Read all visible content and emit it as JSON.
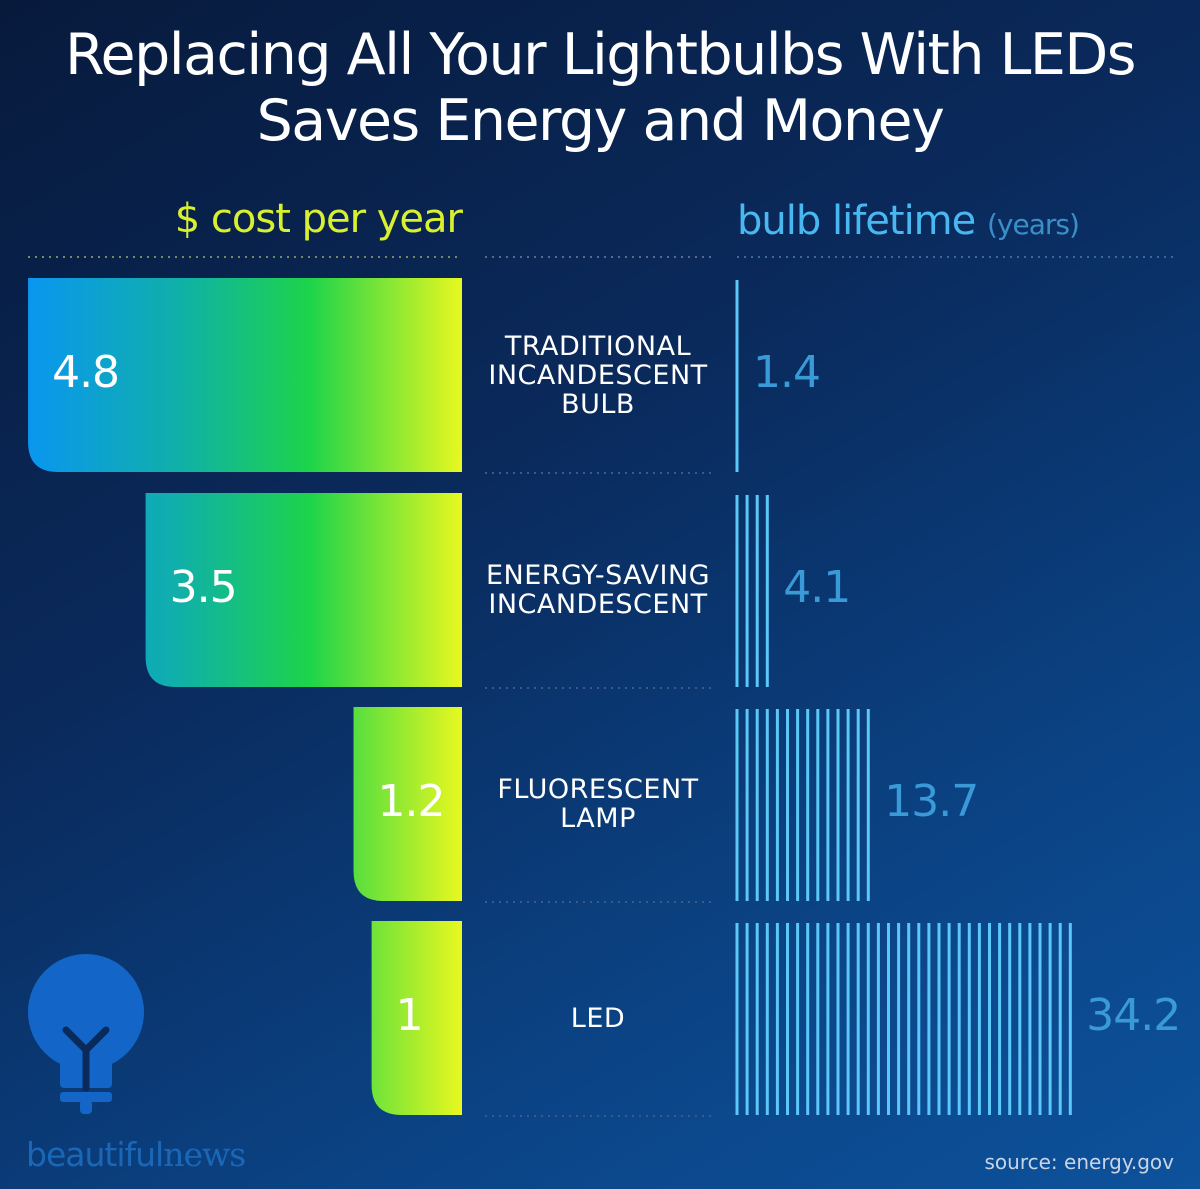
{
  "chart_data": {
    "type": "bar",
    "title": "Replacing All Your Lightbulbs With LEDs Saves Energy and Money",
    "title_lines": [
      "Replacing All Your Lightbulbs With LEDs",
      "Saves Energy and Money"
    ],
    "categories": [
      "TRADITIONAL INCANDESCENT BULB",
      "ENERGY-SAVING INCANDESCENT",
      "FLUORESCENT LAMP",
      "LED"
    ],
    "category_lines": [
      [
        "TRADITIONAL",
        "INCANDESCENT",
        "BULB"
      ],
      [
        "ENERGY-SAVING",
        "INCANDESCENT"
      ],
      [
        "FLUORESCENT",
        "LAMP"
      ],
      [
        "LED"
      ]
    ],
    "series": [
      {
        "name": "$ cost per year",
        "values": [
          4.8,
          3.5,
          1.2,
          1
        ],
        "labels": [
          "4.8",
          "3.5",
          "1.2",
          "1"
        ],
        "direction": "leftward",
        "gradient": [
          "#0a96f0",
          "#1dd44a",
          "#e8f820"
        ]
      },
      {
        "name": "bulb lifetime",
        "unit": "(years)",
        "values": [
          1.4,
          4.1,
          13.7,
          34.2
        ],
        "labels": [
          "1.4",
          "4.1",
          "13.7",
          "34.2"
        ],
        "mark": "one vertical line per year",
        "color": "#5cc8f8"
      }
    ],
    "grid": false
  },
  "source": "source: energy.gov",
  "brand": {
    "text_light": "beautiful",
    "text_serif": "news",
    "logo": "lightbulb-icon",
    "color": "#1366c8"
  },
  "colors": {
    "background": "#0a2a5c",
    "cost_heading": "#d8f030",
    "lifetime_heading": "#4ab8f0"
  }
}
